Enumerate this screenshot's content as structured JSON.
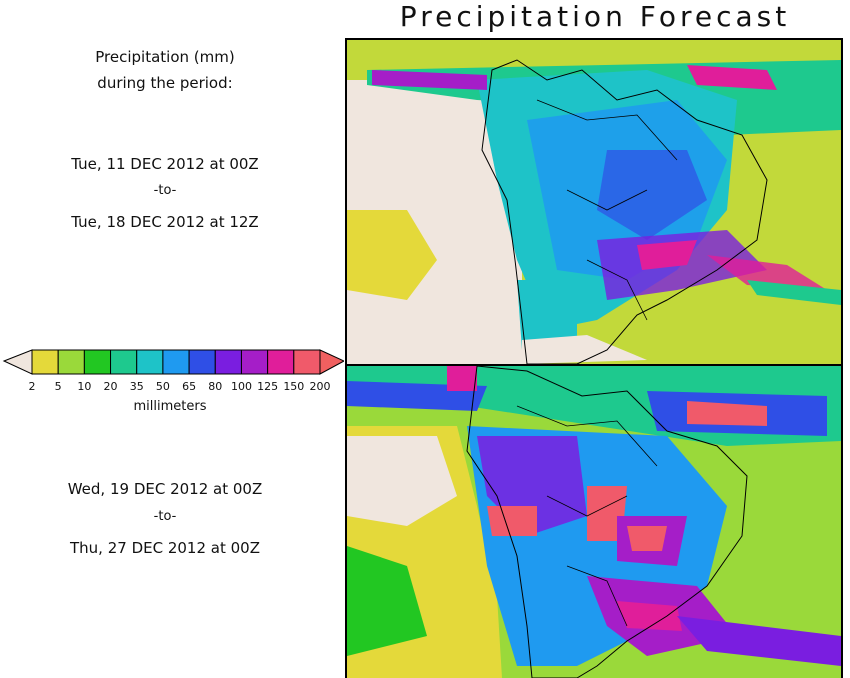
{
  "title": "Precipitation Forecast",
  "legend": {
    "heading_line1": "Precipitation (mm)",
    "heading_line2": "during the period:",
    "units": "millimeters",
    "levels": [
      "2",
      "5",
      "10",
      "20",
      "35",
      "50",
      "65",
      "80",
      "100",
      "125",
      "150",
      "200"
    ],
    "colors": {
      "below": "#f0e6de",
      "bins": [
        "#e4d93a",
        "#9ad93a",
        "#22c722",
        "#1ec98e",
        "#1ec3c8",
        "#1f9af0",
        "#2f4fe6",
        "#7a1ee0",
        "#a51ec8",
        "#e01e9a",
        "#f05a6a"
      ],
      "above": "#f06060"
    }
  },
  "period1": {
    "start": "Tue, 11 DEC 2012 at 00Z",
    "sep": "-to-",
    "end": "Tue, 18 DEC 2012 at 12Z"
  },
  "period2": {
    "start": "Wed, 19 DEC 2012 at 00Z",
    "sep": "-to-",
    "end": "Thu, 27 DEC 2012 at 00Z"
  }
}
